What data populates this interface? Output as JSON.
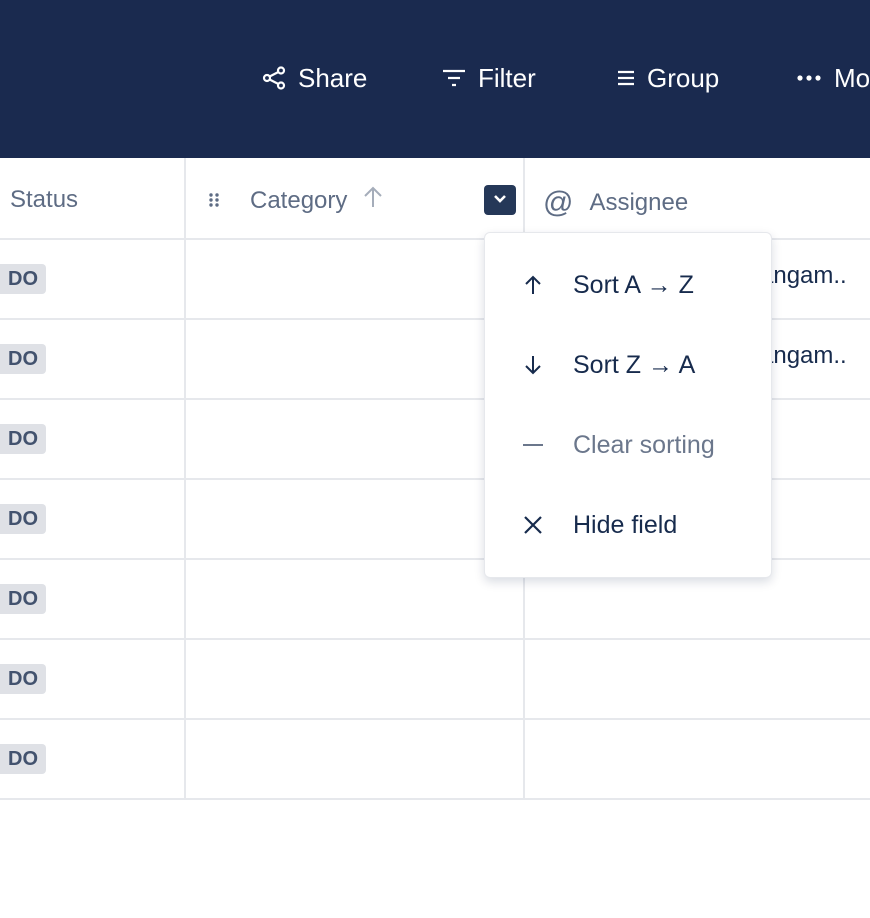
{
  "toolbar": {
    "share": "Share",
    "filter": "Filter",
    "group": "Group",
    "more": "Mo"
  },
  "columns": {
    "status": "Status",
    "category": "Category",
    "assignee": "Assignee"
  },
  "rows": [
    {
      "status": "DO",
      "assignee": "angam.."
    },
    {
      "status": "DO",
      "assignee": "angam.."
    },
    {
      "status": "DO",
      "assignee": ""
    },
    {
      "status": "DO",
      "assignee": ""
    },
    {
      "status": "DO",
      "assignee": ""
    },
    {
      "status": "DO",
      "assignee": ""
    },
    {
      "status": "DO",
      "assignee": ""
    }
  ],
  "menu": {
    "sort_asc": "Sort A → Z",
    "sort_desc": "Sort Z → A",
    "clear": "Clear sorting",
    "hide": "Hide field"
  },
  "colors": {
    "header_bg": "#1a2a4f",
    "accent": "#253858"
  }
}
